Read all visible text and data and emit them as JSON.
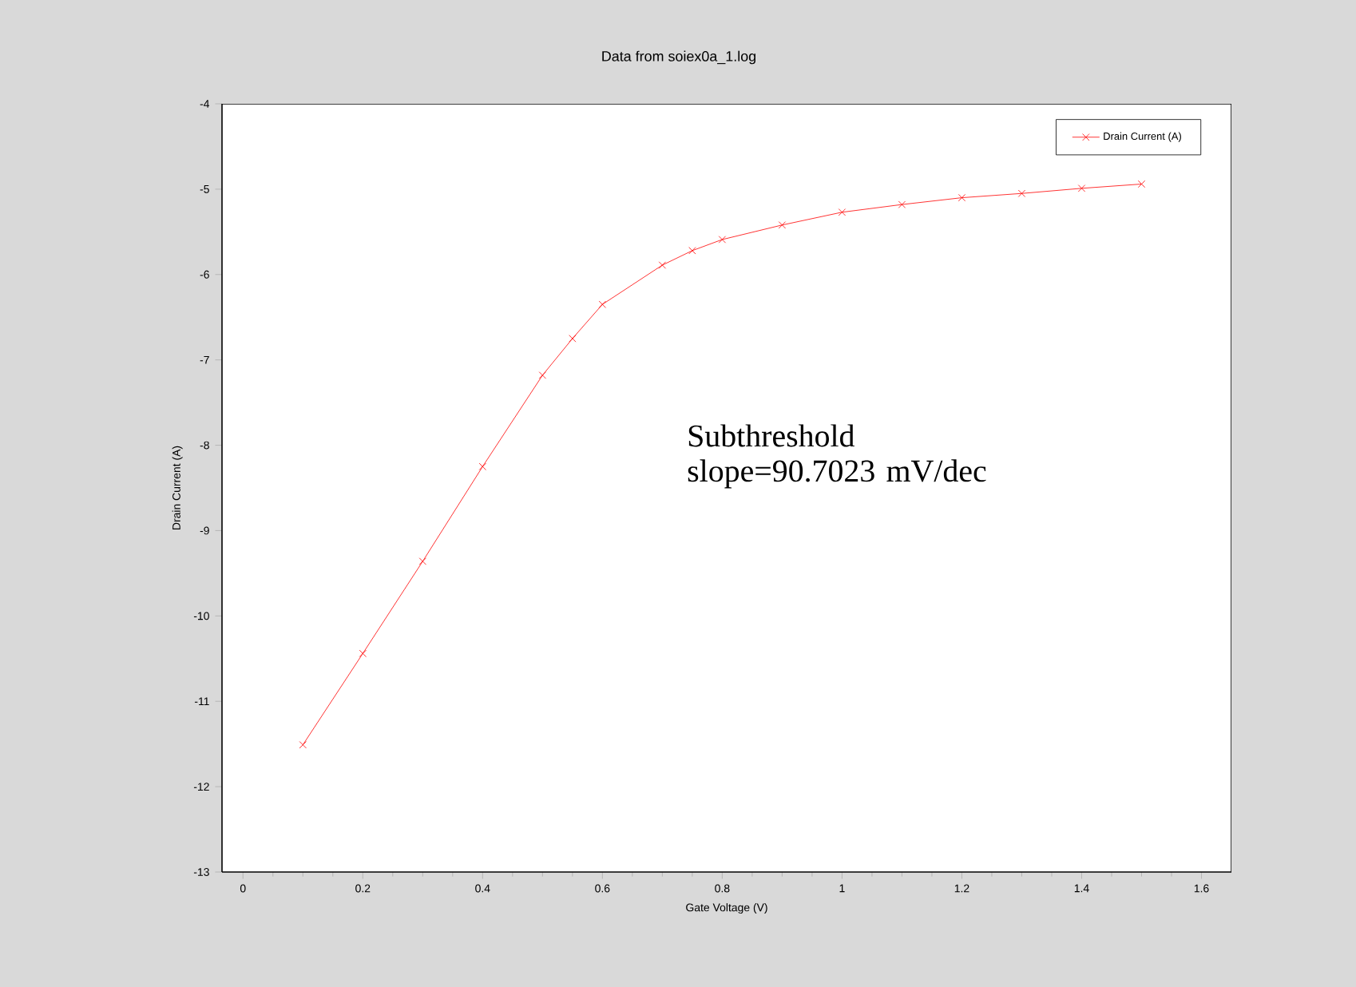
{
  "chart_data": {
    "type": "line",
    "title": "Data from soiex0a_1.log",
    "xlabel": "Gate Voltage (V)",
    "ylabel": "Drain Current (A)",
    "x": [
      0.1,
      0.2,
      0.3,
      0.4,
      0.5,
      0.55,
      0.6,
      0.7,
      0.75,
      0.8,
      0.9,
      1.0,
      1.1,
      1.2,
      1.3,
      1.4,
      1.5
    ],
    "series": [
      {
        "name": "Drain Current (A)",
        "color": "#ff0000",
        "values": [
          -11.51,
          -10.44,
          -9.36,
          -8.25,
          -7.18,
          -6.75,
          -6.35,
          -5.89,
          -5.72,
          -5.59,
          -5.42,
          -5.27,
          -5.18,
          -5.1,
          -5.05,
          -4.99,
          -4.94
        ]
      }
    ],
    "xlim": [
      -0.035,
      1.65
    ],
    "ylim": [
      -13,
      -4
    ],
    "xticks": [
      0,
      0.2,
      0.4,
      0.6,
      0.8,
      1,
      1.2,
      1.4,
      1.6
    ],
    "yticks": [
      -13,
      -12,
      -11,
      -10,
      -9,
      -8,
      -7,
      -6,
      -5,
      -4
    ],
    "annotations": [
      "Subthreshold slope=90.7023 mV/dec"
    ],
    "legend": "top right",
    "marker": "cross",
    "line_style": "solid",
    "grid": false
  }
}
